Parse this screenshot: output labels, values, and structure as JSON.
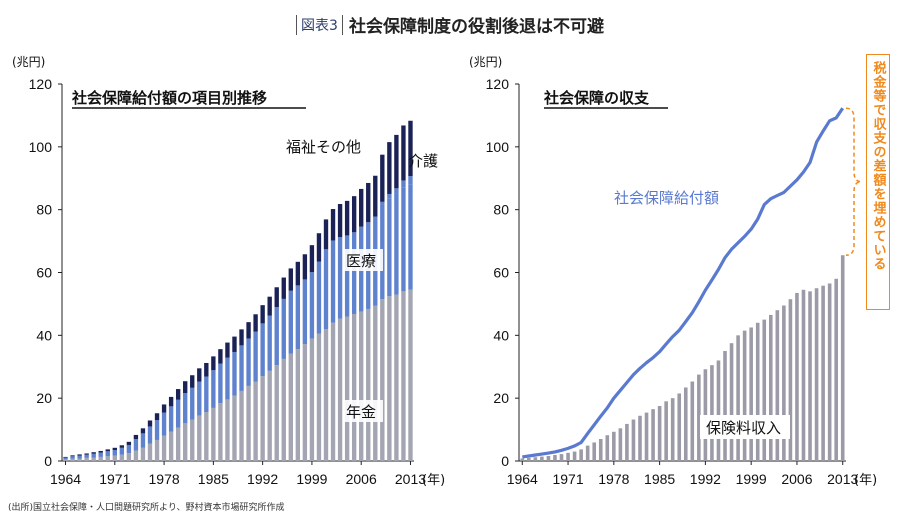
{
  "figure_label": "図表3",
  "title": "社会保障制度の役割後退は不可避",
  "source": "(出所)国立社会保障・人口問題研究所より、野村資本市場研究所作成",
  "callout": "税金等で収支の差額を埋めている",
  "colors": {
    "welfare": "#1b2356",
    "medical": "#5f82cf",
    "pension": "#a3a5b2",
    "benefit_line": "#5a7ad0",
    "income_bar": "#9a9ba6",
    "callout": "#f08a1c"
  },
  "chart_data": [
    {
      "type": "bar",
      "stacked": true,
      "title": "社会保障給付額の項目別推移",
      "ylabel": "(兆円)",
      "xlabel": "(年)",
      "ylim": [
        0,
        120
      ],
      "yticks": [
        0,
        20,
        40,
        60,
        80,
        100,
        120
      ],
      "xtick_labels": [
        "1964",
        "1971",
        "1978",
        "1985",
        "1992",
        "1999",
        "2006",
        "2013"
      ],
      "x": [
        1964,
        1965,
        1966,
        1967,
        1968,
        1969,
        1970,
        1971,
        1972,
        1973,
        1974,
        1975,
        1976,
        1977,
        1978,
        1979,
        1980,
        1981,
        1982,
        1983,
        1984,
        1985,
        1986,
        1987,
        1988,
        1989,
        1990,
        1991,
        1992,
        1993,
        1994,
        1995,
        1996,
        1997,
        1998,
        1999,
        2000,
        2001,
        2002,
        2003,
        2004,
        2005,
        2006,
        2007,
        2008,
        2009,
        2010,
        2011,
        2012,
        2013
      ],
      "series": [
        {
          "name": "年金",
          "values": [
            0.5,
            0.7,
            0.8,
            1.0,
            1.1,
            1.3,
            1.5,
            1.7,
            2.0,
            2.5,
            3.3,
            4.2,
            5.5,
            6.7,
            8.1,
            9.3,
            10.6,
            12.0,
            13.2,
            14.5,
            15.6,
            16.9,
            18.4,
            19.6,
            20.8,
            22.3,
            23.9,
            25.3,
            27.0,
            28.7,
            30.5,
            32.5,
            34.2,
            35.6,
            37.2,
            39.0,
            40.5,
            42.0,
            44.0,
            45.3,
            46.0,
            46.8,
            47.6,
            48.4,
            49.5,
            51.5,
            52.5,
            53.0,
            54.0,
            54.6
          ]
        },
        {
          "name": "医療",
          "values": [
            0.6,
            0.8,
            0.9,
            1.0,
            1.2,
            1.4,
            1.6,
            1.8,
            2.2,
            2.6,
            3.7,
            4.6,
            5.5,
            6.3,
            7.3,
            8.1,
            8.9,
            9.6,
            10.1,
            10.8,
            11.3,
            12.0,
            12.6,
            13.3,
            13.9,
            14.5,
            15.1,
            15.9,
            16.8,
            17.6,
            18.5,
            19.1,
            20.0,
            20.3,
            20.6,
            21.1,
            23.0,
            25.4,
            26.2,
            26.0,
            25.8,
            26.0,
            27.0,
            27.6,
            28.3,
            30.0,
            31.0,
            32.0,
            33.0,
            33.5
          ]
        },
        {
          "name": "介護",
          "values": [
            0,
            0,
            0,
            0,
            0,
            0,
            0,
            0,
            0,
            0,
            0,
            0,
            0,
            0,
            0,
            0,
            0,
            0,
            0,
            0,
            0,
            0,
            0,
            0,
            0,
            0,
            0,
            0,
            0,
            0,
            0,
            0,
            0,
            0,
            0,
            0,
            0,
            0,
            0,
            0,
            0,
            0,
            0,
            0,
            0,
            1.0,
            1.5,
            1.8,
            2.3,
            2.6
          ]
        },
        {
          "name": "福祉その他",
          "values": [
            0.2,
            0.3,
            0.4,
            0.4,
            0.5,
            0.5,
            0.6,
            0.7,
            0.8,
            1.0,
            1.3,
            1.6,
            1.9,
            2.2,
            2.6,
            3.0,
            3.4,
            3.8,
            4.0,
            4.2,
            4.3,
            4.4,
            4.6,
            4.8,
            4.9,
            5.1,
            5.2,
            5.5,
            5.8,
            6.0,
            6.3,
            6.8,
            7.1,
            7.5,
            8.0,
            8.6,
            9.0,
            9.5,
            10.0,
            10.5,
            11.0,
            11.5,
            12.0,
            12.5,
            13.0,
            15.0,
            16.5,
            17.0,
            17.5,
            17.6
          ]
        }
      ],
      "labels": [
        "福祉その他",
        "介護",
        "医療",
        "年金"
      ]
    },
    {
      "type": "bar+line",
      "title": "社会保障の収支",
      "ylabel": "(兆円)",
      "xlabel": "(年)",
      "ylim": [
        0,
        120
      ],
      "yticks": [
        0,
        20,
        40,
        60,
        80,
        100,
        120
      ],
      "xtick_labels": [
        "1964",
        "1971",
        "1978",
        "1985",
        "1992",
        "1999",
        "2006",
        "2013"
      ],
      "x": [
        1964,
        1965,
        1966,
        1967,
        1968,
        1969,
        1970,
        1971,
        1972,
        1973,
        1974,
        1975,
        1976,
        1977,
        1978,
        1979,
        1980,
        1981,
        1982,
        1983,
        1984,
        1985,
        1986,
        1987,
        1988,
        1989,
        1990,
        1991,
        1992,
        1993,
        1994,
        1995,
        1996,
        1997,
        1998,
        1999,
        2000,
        2001,
        2002,
        2003,
        2004,
        2005,
        2006,
        2007,
        2008,
        2009,
        2010,
        2011,
        2012,
        2013
      ],
      "series": [
        {
          "name": "保険料収入",
          "kind": "bar",
          "values": [
            0.8,
            1.0,
            1.2,
            1.4,
            1.6,
            1.9,
            2.2,
            2.6,
            3.0,
            3.7,
            4.9,
            5.9,
            7.0,
            8.2,
            9.3,
            10.4,
            11.8,
            13.2,
            14.4,
            15.4,
            16.5,
            17.5,
            19.0,
            20.0,
            21.5,
            23.4,
            25.3,
            27.5,
            29.2,
            30.5,
            32.0,
            35.0,
            37.5,
            40.0,
            41.5,
            42.5,
            44.0,
            45.0,
            46.5,
            48.0,
            49.5,
            51.5,
            53.5,
            54.5,
            54.0,
            55.0,
            55.8,
            56.5,
            58.0,
            65.5
          ]
        },
        {
          "name": "社会保障給付額",
          "kind": "line",
          "values": [
            1.3,
            1.6,
            1.9,
            2.2,
            2.5,
            2.9,
            3.4,
            4.0,
            4.8,
            5.9,
            8.8,
            11.5,
            14.3,
            16.9,
            20.0,
            22.5,
            25.0,
            27.5,
            29.5,
            31.3,
            32.9,
            34.8,
            37.2,
            39.6,
            41.6,
            44.4,
            47.2,
            50.7,
            54.4,
            57.6,
            61.0,
            64.7,
            67.4,
            69.5,
            71.5,
            73.8,
            77.0,
            81.6,
            83.5,
            84.5,
            85.5,
            87.5,
            89.5,
            92.0,
            95.0,
            101.5,
            105.0,
            108.3,
            109.2,
            112.3
          ]
        }
      ],
      "labels": [
        "社会保障給付額",
        "保険料収入"
      ]
    }
  ]
}
